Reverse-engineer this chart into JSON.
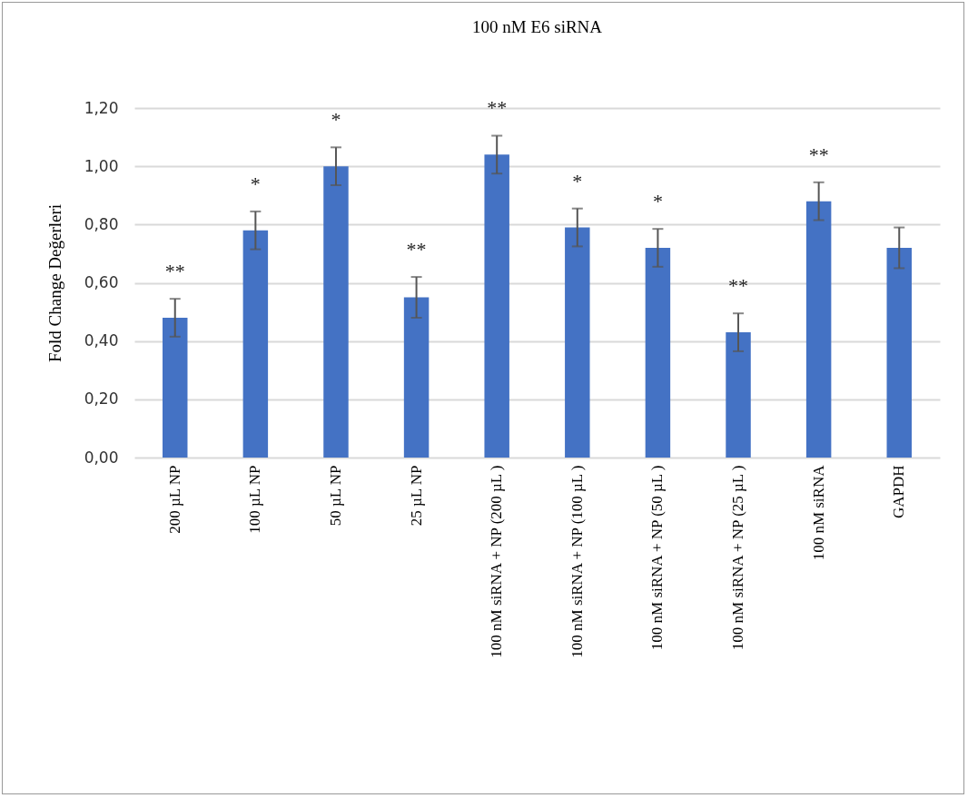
{
  "chart_data": {
    "type": "bar",
    "title": "100 nM E6 siRNA",
    "ylabel": "Fold Change Değerleri",
    "categories": [
      "200 µL NP",
      "100 µL NP",
      "50 µL NP",
      "25 µL NP",
      "100 nM siRNA + NP (200 µL )",
      "100 nM siRNA + NP (100 µL )",
      "100 nM siRNA + NP (50 µL )",
      "100 nM siRNA + NP (25 µL )",
      "100 nM siRNA",
      "GAPDH"
    ],
    "values": [
      0.48,
      0.78,
      1.0,
      0.55,
      1.04,
      0.79,
      0.72,
      0.43,
      0.88,
      0.72
    ],
    "errors": [
      0.065,
      0.065,
      0.065,
      0.07,
      0.065,
      0.065,
      0.065,
      0.065,
      0.065,
      0.07
    ],
    "color": "#4472c4",
    "ylim": [
      0,
      1.2
    ],
    "yticks": [
      {
        "value": 0,
        "label": "0,00"
      },
      {
        "value": 0.2,
        "label": "0,20"
      },
      {
        "value": 0.4,
        "label": "0,40"
      },
      {
        "value": 0.6,
        "label": "0,60"
      },
      {
        "value": 0.8,
        "label": "0,80"
      },
      {
        "value": 1.0,
        "label": "1,00"
      },
      {
        "value": 1.2,
        "label": "1,20"
      }
    ],
    "grid": "y",
    "annotations": [
      {
        "text": "**",
        "x": "200 µL NP",
        "y": 0.48
      },
      {
        "text": "*",
        "x": "100 µL NP",
        "y": 0.78
      },
      {
        "text": "*",
        "x": "50 µL NP",
        "y": 1.0
      },
      {
        "text": "**",
        "x": "25 µL NP",
        "y": 0.55
      },
      {
        "text": "**",
        "x": "100 nM siRNA + NP (200 µL )",
        "y": 1.04
      },
      {
        "text": "*",
        "x": "100 nM siRNA + NP (100 µL )",
        "y": 0.79
      },
      {
        "text": "*",
        "x": "100 nM siRNA + NP (50 µL )",
        "y": 0.72
      },
      {
        "text": "**",
        "x": "100 nM siRNA + NP (25 µL )",
        "y": 0.43
      },
      {
        "text": "**",
        "x": "100 nM siRNA",
        "y": 0.88
      }
    ]
  }
}
